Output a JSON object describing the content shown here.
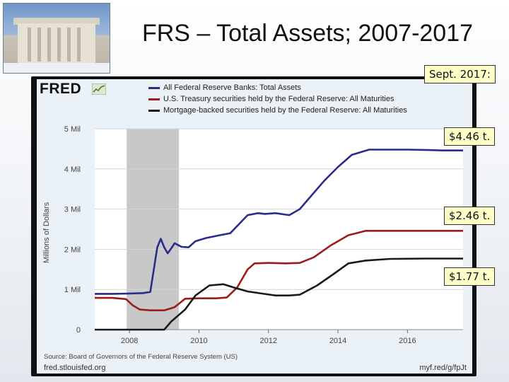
{
  "slide": {
    "title": "FRS – Total Assets; 2007-2017"
  },
  "fred": {
    "logo": "FRED",
    "source_note": "Source: Board of Governors of the Federal Reserve System (US)",
    "site": "fred.stlouisfed.org",
    "short_url": "myf.red/g/fpJt"
  },
  "callouts": {
    "date": "Sept. 2017:",
    "total": "$4.46 t.",
    "treasury": "$2.46 t.",
    "mbs": "$1.77 t."
  },
  "colors": {
    "total": "#2b2b8c",
    "treasury": "#9c1c1c",
    "mbs": "#1a1a1a",
    "recession": "#c8c8c8"
  },
  "chart_data": {
    "type": "line",
    "ylabel": "Millions of Dollars",
    "xlabel": "",
    "xlim": [
      2007.0,
      2017.6
    ],
    "ylim": [
      0,
      5000000
    ],
    "y_ticks": [
      {
        "value": 0,
        "label": "0"
      },
      {
        "value": 1000000,
        "label": "1 Mil"
      },
      {
        "value": 2000000,
        "label": "2 Mil"
      },
      {
        "value": 3000000,
        "label": "3 Mil"
      },
      {
        "value": 4000000,
        "label": "4 Mil"
      },
      {
        "value": 5000000,
        "label": "5 Mil"
      }
    ],
    "x_ticks": [
      {
        "value": 2008,
        "label": "2008"
      },
      {
        "value": 2010,
        "label": "2010"
      },
      {
        "value": 2012,
        "label": "2012"
      },
      {
        "value": 2014,
        "label": "2014"
      },
      {
        "value": 2016,
        "label": "2016"
      }
    ],
    "recession": [
      2007.92,
      2009.42
    ],
    "grid": true,
    "legend_position": "top",
    "series": [
      {
        "key": "total",
        "name": "All Federal Reserve Banks: Total Assets",
        "x": [
          2007.0,
          2007.5,
          2008.0,
          2008.4,
          2008.6,
          2008.7,
          2008.8,
          2008.9,
          2009.0,
          2009.1,
          2009.2,
          2009.3,
          2009.5,
          2009.7,
          2009.9,
          2010.2,
          2010.6,
          2010.9,
          2011.4,
          2011.7,
          2011.9,
          2012.2,
          2012.6,
          2012.9,
          2013.2,
          2013.6,
          2014.0,
          2014.4,
          2014.7,
          2014.9,
          2015.3,
          2016.0,
          2016.6,
          2017.0,
          2017.6
        ],
        "values": [
          890000,
          890000,
          900000,
          910000,
          940000,
          1500000,
          2050000,
          2260000,
          2050000,
          1900000,
          2020000,
          2150000,
          2060000,
          2050000,
          2200000,
          2280000,
          2350000,
          2400000,
          2850000,
          2900000,
          2880000,
          2900000,
          2850000,
          3000000,
          3300000,
          3700000,
          4050000,
          4350000,
          4430000,
          4480000,
          4480000,
          4480000,
          4470000,
          4460000,
          4460000
        ]
      },
      {
        "key": "treasury",
        "name": "U.S. Treasury securities held by the Federal Reserve: All Maturities",
        "x": [
          2007.0,
          2007.5,
          2007.9,
          2008.1,
          2008.3,
          2008.6,
          2009.0,
          2009.3,
          2009.6,
          2010.0,
          2010.5,
          2010.8,
          2011.1,
          2011.4,
          2011.6,
          2012.0,
          2012.5,
          2012.9,
          2013.3,
          2013.8,
          2014.3,
          2014.8,
          2015.5,
          2016.5,
          2017.6
        ],
        "values": [
          790000,
          790000,
          760000,
          600000,
          500000,
          480000,
          480000,
          560000,
          770000,
          780000,
          780000,
          800000,
          1050000,
          1500000,
          1650000,
          1660000,
          1650000,
          1660000,
          1800000,
          2100000,
          2350000,
          2460000,
          2460000,
          2460000,
          2460000
        ]
      },
      {
        "key": "mbs",
        "name": "Mortgage-backed securities held by the Federal Reserve: All Maturities",
        "x": [
          2007.0,
          2008.5,
          2009.0,
          2009.2,
          2009.6,
          2009.9,
          2010.3,
          2010.7,
          2011.0,
          2011.4,
          2011.8,
          2012.2,
          2012.6,
          2012.9,
          2013.4,
          2013.9,
          2014.3,
          2014.8,
          2015.5,
          2016.5,
          2017.6
        ],
        "values": [
          0,
          0,
          0,
          200000,
          500000,
          850000,
          1100000,
          1130000,
          1050000,
          950000,
          900000,
          850000,
          850000,
          870000,
          1100000,
          1400000,
          1650000,
          1720000,
          1760000,
          1770000,
          1770000
        ]
      }
    ]
  }
}
